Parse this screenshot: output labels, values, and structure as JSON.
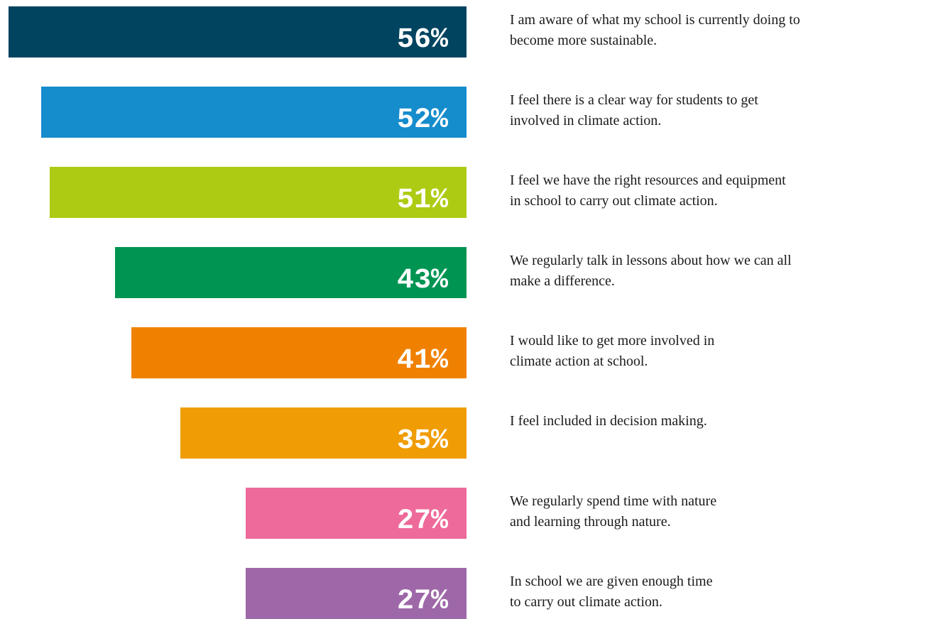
{
  "chart_data": {
    "type": "bar",
    "orientation": "horizontal",
    "categories": [
      "I am aware of what my school is currently doing to\nbecome more sustainable.",
      "I feel there is a clear way for students to get\ninvolved in climate action.",
      "I feel we have the right resources and equipment\nin school to carry out climate action.",
      "We regularly talk in lessons about how we can all\nmake a difference.",
      "I would like to get more involved in\nclimate action at school.",
      "I feel included in decision making.",
      "We regularly spend time with nature\nand learning through nature.",
      "In school we are given enough time\nto carry out climate action."
    ],
    "values": [
      56,
      52,
      51,
      43,
      41,
      35,
      27,
      27
    ],
    "value_labels": [
      "56%",
      "52%",
      "51%",
      "43%",
      "41%",
      "35%",
      "27%",
      "27%"
    ],
    "colors": [
      "#004460",
      "#158ccc",
      "#aecb14",
      "#009452",
      "#f08100",
      "#f09c05",
      "#ee6a9a",
      "#9e68a8"
    ]
  }
}
